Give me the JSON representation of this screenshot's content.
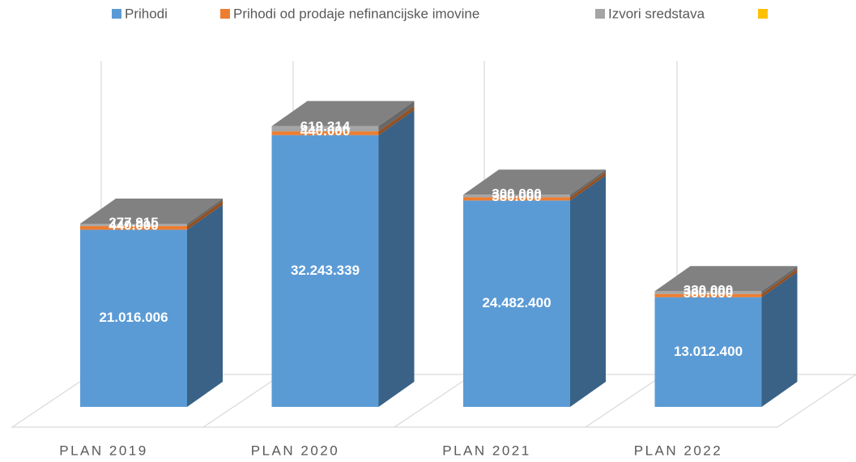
{
  "chart_data": {
    "type": "bar3d-stacked",
    "categories": [
      "PLAN 2019",
      "PLAN 2020",
      "PLAN 2021",
      "PLAN 2022"
    ],
    "ylim": [
      0,
      40000000
    ],
    "series": [
      {
        "name": "Prihodi",
        "color": "#5b9bd5",
        "values": [
          21016006,
          32243339,
          24482400,
          13012400
        ],
        "value_labels": [
          "21.016.006",
          "32.243.339",
          "24.482.400",
          "13.012.400"
        ]
      },
      {
        "name": "Prihodi od prodaje nefinancijske imovine",
        "color": "#ed7d31",
        "values": [
          440000,
          440000,
          380000,
          380000
        ],
        "value_labels": [
          "440.000",
          "440.000",
          "380.000",
          "380.000"
        ]
      },
      {
        "name": "Izvori sredstava",
        "color": "#a5a5a5",
        "values": [
          277915,
          619314,
          300000,
          330000
        ],
        "value_labels": [
          "277.915",
          "619.314",
          "300.000",
          "330.000"
        ]
      },
      {
        "color": "#ffc000",
        "values": [
          null,
          null,
          null,
          null
        ]
      }
    ]
  }
}
